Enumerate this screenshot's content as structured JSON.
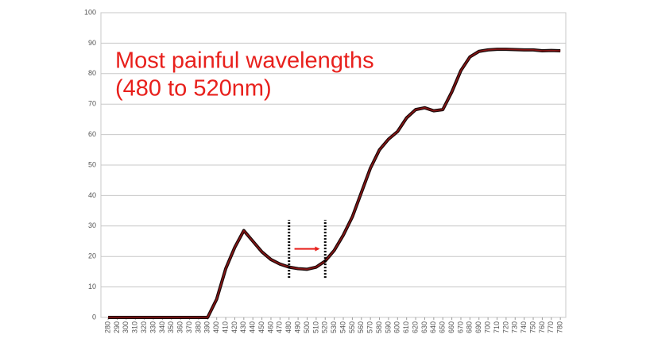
{
  "chart_data": {
    "type": "line",
    "annotation": [
      "Most painful wavelengths",
      "(480 to 520nm)"
    ],
    "x": [
      280,
      290,
      300,
      310,
      320,
      330,
      340,
      350,
      360,
      370,
      380,
      390,
      400,
      410,
      420,
      430,
      440,
      450,
      460,
      470,
      480,
      490,
      500,
      510,
      520,
      530,
      540,
      550,
      560,
      570,
      580,
      590,
      600,
      610,
      620,
      630,
      640,
      650,
      660,
      670,
      680,
      690,
      700,
      710,
      720,
      730,
      740,
      750,
      760,
      770,
      780
    ],
    "series": [
      {
        "color": "#8b1414",
        "values": [
          0,
          0,
          0,
          0,
          0,
          0,
          0,
          0,
          0,
          0,
          0,
          0,
          6,
          16,
          23,
          28.5,
          25,
          21.5,
          19,
          17.5,
          16.5,
          16,
          15.8,
          16.5,
          18.5,
          22,
          27,
          33,
          41,
          49,
          55,
          58.5,
          61,
          65.5,
          68.2,
          68.8,
          67.8,
          68.2,
          74,
          81,
          85.5,
          87.3,
          87.8,
          88,
          88,
          87.9,
          87.8,
          87.8,
          87.5,
          87.6,
          87.5
        ]
      }
    ],
    "xlim": [
      272,
      786
    ],
    "xticks": [
      280,
      290,
      300,
      310,
      320,
      330,
      340,
      350,
      360,
      370,
      380,
      390,
      400,
      410,
      420,
      430,
      440,
      450,
      460,
      470,
      480,
      490,
      500,
      510,
      520,
      530,
      540,
      550,
      560,
      570,
      580,
      590,
      600,
      610,
      620,
      630,
      640,
      650,
      660,
      670,
      680,
      690,
      700,
      710,
      720,
      730,
      740,
      750,
      760,
      770,
      780
    ],
    "ylim": [
      0,
      100
    ],
    "yticks": [
      0,
      10,
      20,
      30,
      40,
      50,
      60,
      70,
      80,
      90,
      100
    ],
    "grid": true,
    "highlight": {
      "x": [
        480,
        520
      ],
      "y": [
        13,
        32
      ]
    },
    "arrow": {
      "x": [
        486,
        514
      ],
      "y": 22.5,
      "color": "#e8201c"
    },
    "annotation_color": "#e8201c"
  }
}
